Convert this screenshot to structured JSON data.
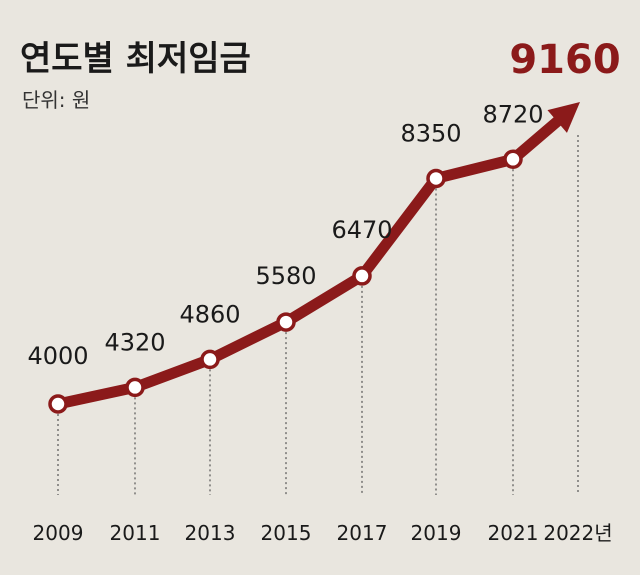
{
  "title": "연도별 최저임금",
  "unit_label": "단위: 원",
  "colors": {
    "line": "#8b1a1a",
    "highlight": "#8b1a1a",
    "background": "#e9e6df",
    "text": "#1a1a1a"
  },
  "chart_data": {
    "type": "line",
    "title": "연도별 최저임금",
    "unit": "단위: 원",
    "categories": [
      "2009",
      "2011",
      "2013",
      "2015",
      "2017",
      "2019",
      "2021",
      "2022년"
    ],
    "series": [
      {
        "values": [
          4000,
          4320,
          4860,
          5580,
          6470,
          8350,
          8720,
          9160
        ]
      }
    ],
    "value_labels": [
      "4000",
      "4320",
      "4860",
      "5580",
      "6470",
      "8350",
      "8720",
      "9160"
    ],
    "highlight_index": 7,
    "last_point_marker": "arrow",
    "grid": "vertical dotted drop lines",
    "legend": "none"
  }
}
